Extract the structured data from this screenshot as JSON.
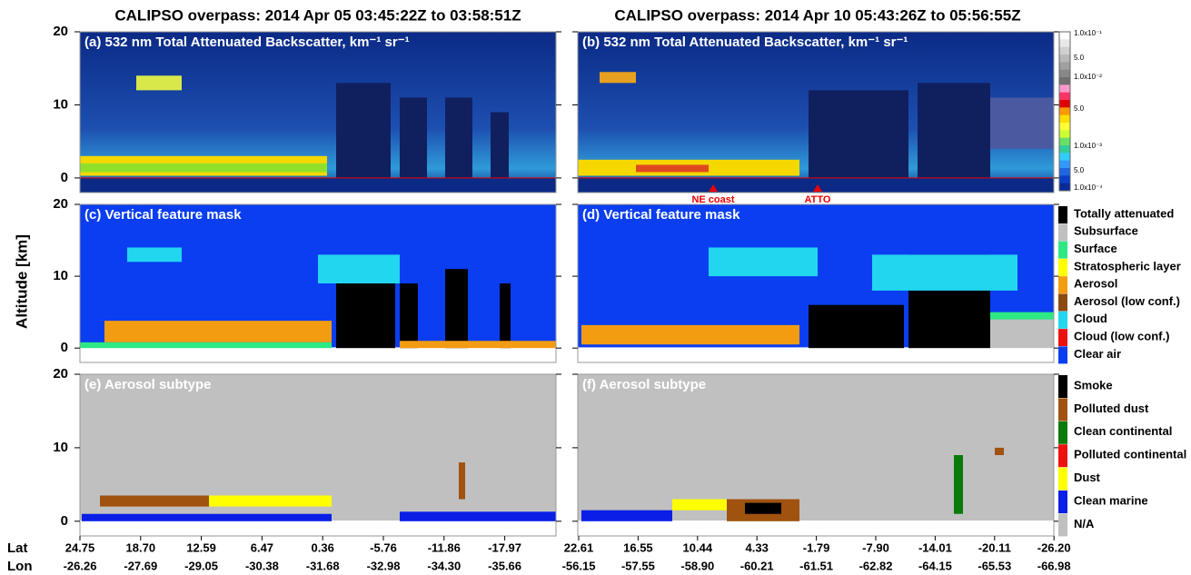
{
  "titles": [
    "CALIPSO overpass: 2014 Apr 05 03:45:22Z to 03:58:51Z",
    "CALIPSO overpass: 2014 Apr 10 05:43:26Z to 05:56:55Z"
  ],
  "panels": [
    "(a) 532 nm Total Attenuated Backscatter, km⁻¹ sr⁻¹",
    "(b) 532 nm Total Attenuated Backscatter, km⁻¹ sr⁻¹",
    "(c) Vertical feature mask",
    "(d) Vertical feature mask",
    "(e) Aerosol subtype",
    "(f) Aerosol subtype"
  ],
  "y_axis_label": "Altitude [km]",
  "ylim": [
    -2,
    20
  ],
  "yticks": [
    0,
    10,
    20
  ],
  "annotations": [
    "NE coast",
    "ATTO"
  ],
  "colorbar_labels": [
    "1.0x10⁻¹",
    "5.0",
    "1.0x10⁻²",
    "5.0",
    "1.0x10⁻³",
    "5.0",
    "1.0x10⁻⁴"
  ],
  "feature_legend": [
    {
      "name": "Totally attenuated",
      "color": "#000000"
    },
    {
      "name": "Subsurface",
      "color": "#c0c0c0"
    },
    {
      "name": "Surface",
      "color": "#2ee884"
    },
    {
      "name": "Stratospheric layer",
      "color": "#ffff00"
    },
    {
      "name": "Aerosol",
      "color": "#f39c12"
    },
    {
      "name": "Aerosol (low conf.)",
      "color": "#8b4a12"
    },
    {
      "name": "Cloud",
      "color": "#22d6f0"
    },
    {
      "name": "Cloud (low conf.)",
      "color": "#ee1111"
    },
    {
      "name": "Clear air",
      "color": "#0a3ef0"
    }
  ],
  "subtype_legend": [
    {
      "name": "Smoke",
      "color": "#000000"
    },
    {
      "name": "Polluted dust",
      "color": "#a0520f"
    },
    {
      "name": "Clean continental",
      "color": "#0a7a0a"
    },
    {
      "name": "Polluted continental",
      "color": "#ee1111"
    },
    {
      "name": "Dust",
      "color": "#ffff00"
    },
    {
      "name": "Clean marine",
      "color": "#0a1ee6"
    },
    {
      "name": "N/A",
      "color": "#c0c0c0"
    }
  ],
  "axis_rows": [
    "Lat",
    "Lon"
  ],
  "left_lat": [
    "24.75",
    "18.70",
    "12.59",
    "6.47",
    "0.36",
    "-5.76",
    "-11.86",
    "-17.97"
  ],
  "left_lon": [
    "-26.26",
    "-27.69",
    "-29.05",
    "-30.38",
    "-31.68",
    "-32.98",
    "-34.30",
    "-35.66"
  ],
  "right_lat": [
    "22.61",
    "16.55",
    "10.44",
    "4.33",
    "-1.79",
    "-7.90",
    "-14.01",
    "-20.11",
    "-26.20"
  ],
  "right_lon": [
    "-56.15",
    "-57.55",
    "-58.90",
    "-60.21",
    "-61.51",
    "-62.82",
    "-64.15",
    "-65.53",
    "-66.98"
  ]
}
